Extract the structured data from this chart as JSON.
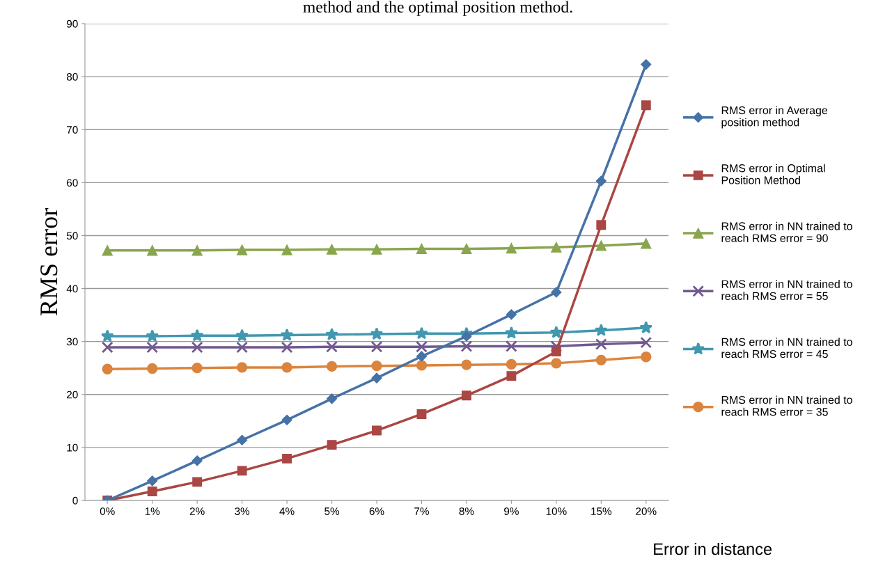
{
  "chart_data": {
    "type": "line",
    "title": "method and the optimal position method.",
    "xlabel": "Error in distance",
    "ylabel": "RMS error",
    "categories": [
      "0%",
      "1%",
      "2%",
      "3%",
      "4%",
      "5%",
      "6%",
      "7%",
      "8%",
      "9%",
      "10%",
      "15%",
      "20%"
    ],
    "ylim": [
      0,
      90
    ],
    "yticks": [
      0,
      10,
      20,
      30,
      40,
      50,
      60,
      70,
      80,
      90
    ],
    "grid": "y",
    "legend": "right",
    "series": [
      {
        "name": "RMS error in Average\nposition method",
        "color": "#4572a7",
        "marker": "diamond",
        "values": [
          0,
          3.7,
          7.5,
          11.4,
          15.2,
          19.2,
          23.1,
          27.2,
          31,
          35.1,
          39.3,
          60.3,
          82.3
        ]
      },
      {
        "name": "RMS error in Optimal\nPosition Method",
        "color": "#aa4643",
        "marker": "square",
        "values": [
          0,
          1.7,
          3.5,
          5.6,
          7.9,
          10.5,
          13.2,
          16.3,
          19.8,
          23.5,
          28.1,
          52,
          74.6
        ]
      },
      {
        "name": "RMS error in NN trained to\nreach RMS error = 90",
        "color": "#89a54e",
        "marker": "triangle",
        "values": [
          47.2,
          47.2,
          47.2,
          47.3,
          47.3,
          47.4,
          47.4,
          47.5,
          47.5,
          47.6,
          47.8,
          48.1,
          48.5
        ]
      },
      {
        "name": "RMS error in NN trained to\nreach RMS error = 55",
        "color": "#71588f",
        "marker": "cross",
        "values": [
          28.9,
          28.9,
          28.9,
          28.9,
          28.9,
          29,
          29,
          29,
          29.1,
          29.1,
          29.1,
          29.5,
          29.8
        ]
      },
      {
        "name": "RMS error in NN trained to\nreach RMS error = 45",
        "color": "#4198af",
        "marker": "star",
        "values": [
          31,
          31,
          31.1,
          31.1,
          31.2,
          31.3,
          31.4,
          31.5,
          31.5,
          31.6,
          31.7,
          32.1,
          32.6
        ]
      },
      {
        "name": "RMS error in NN trained to\nreach RMS error = 35",
        "color": "#db843d",
        "marker": "circle",
        "values": [
          24.8,
          24.9,
          25,
          25.1,
          25.1,
          25.3,
          25.4,
          25.5,
          25.6,
          25.7,
          25.9,
          26.5,
          27.1
        ]
      }
    ]
  }
}
